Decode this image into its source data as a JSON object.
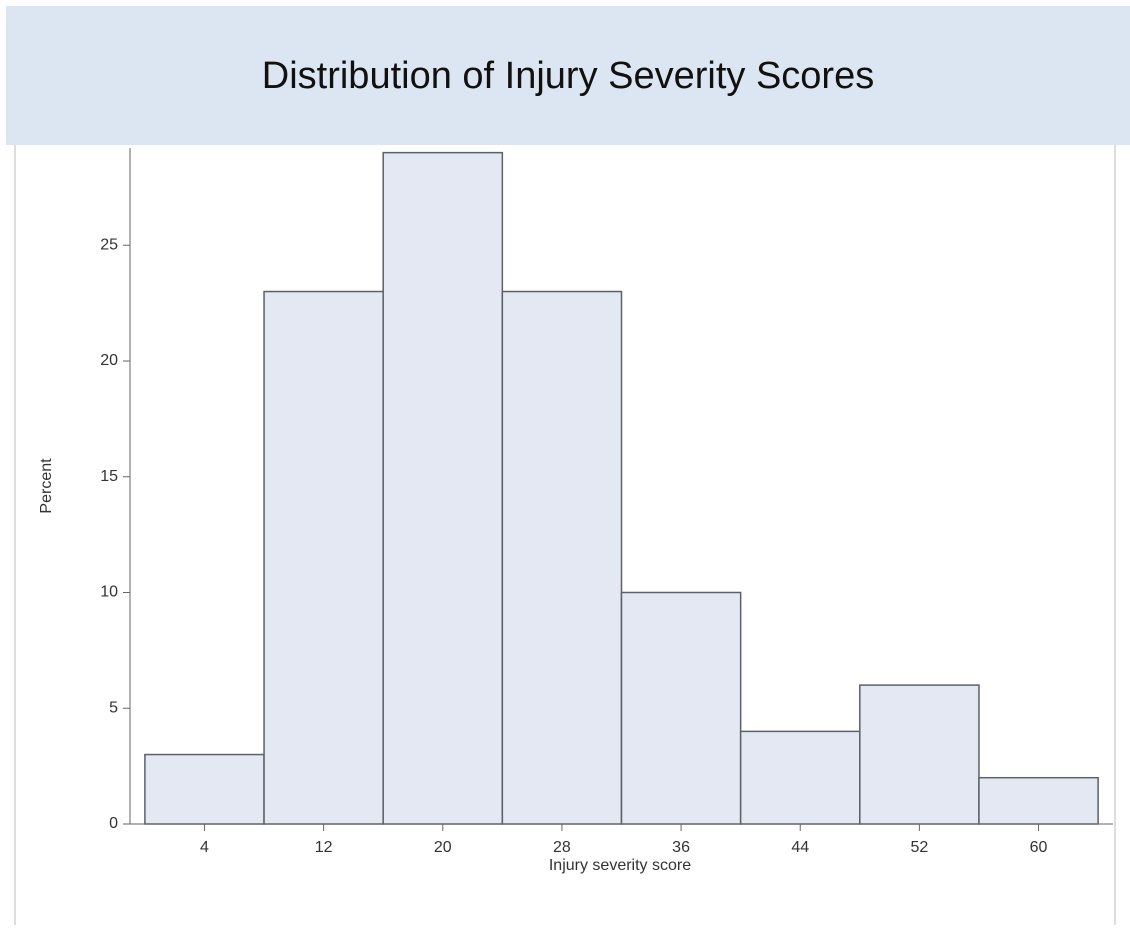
{
  "chart_data": {
    "type": "histogram",
    "title": "Distribution of Injury Severity Scores",
    "x_label": "Injury severity score",
    "y_label": "Percent",
    "bins": [
      0,
      8,
      16,
      24,
      32,
      40,
      48,
      56,
      64
    ],
    "values": [
      3,
      23,
      29,
      23,
      10,
      4,
      6,
      2
    ],
    "color": "#e3e8f2",
    "edge_color": "#5c6069",
    "xlim": [
      -1,
      65
    ],
    "xticks": [
      4,
      12,
      20,
      28,
      36,
      44,
      52,
      60
    ],
    "ylim": [
      0,
      29.2
    ],
    "yticks": [
      0,
      5,
      10,
      15,
      20,
      25
    ]
  }
}
